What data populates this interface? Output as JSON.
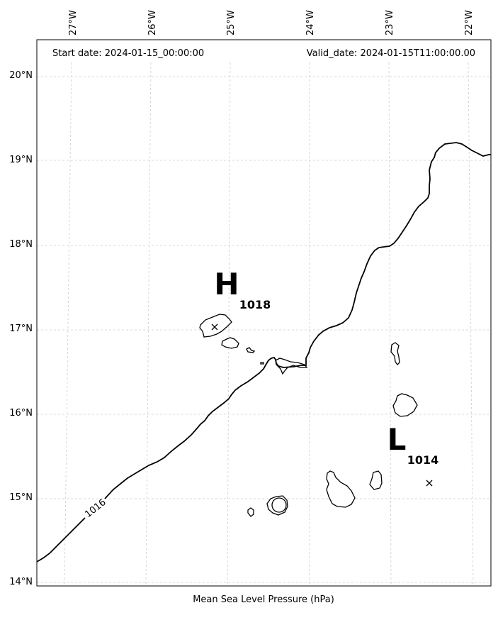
{
  "header": {
    "start_date": "Start date: 2024-01-15_00:00:00",
    "valid_date": "Valid_date: 2024-01-15T11:00:00.00"
  },
  "axes": {
    "lon_labels": [
      "27°W",
      "26°W",
      "25°W",
      "24°W",
      "23°W",
      "22°W"
    ],
    "lat_labels": [
      "20°N",
      "19°N",
      "18°N",
      "17°N",
      "16°N",
      "15°N",
      "14°N"
    ],
    "xlabel": "Mean Sea Level Pressure (hPa)"
  },
  "pressure_centers": [
    {
      "letter": "H",
      "value": "1018"
    },
    {
      "letter": "L",
      "value": "1014"
    }
  ],
  "contours": [
    {
      "label": "1016"
    }
  ]
}
